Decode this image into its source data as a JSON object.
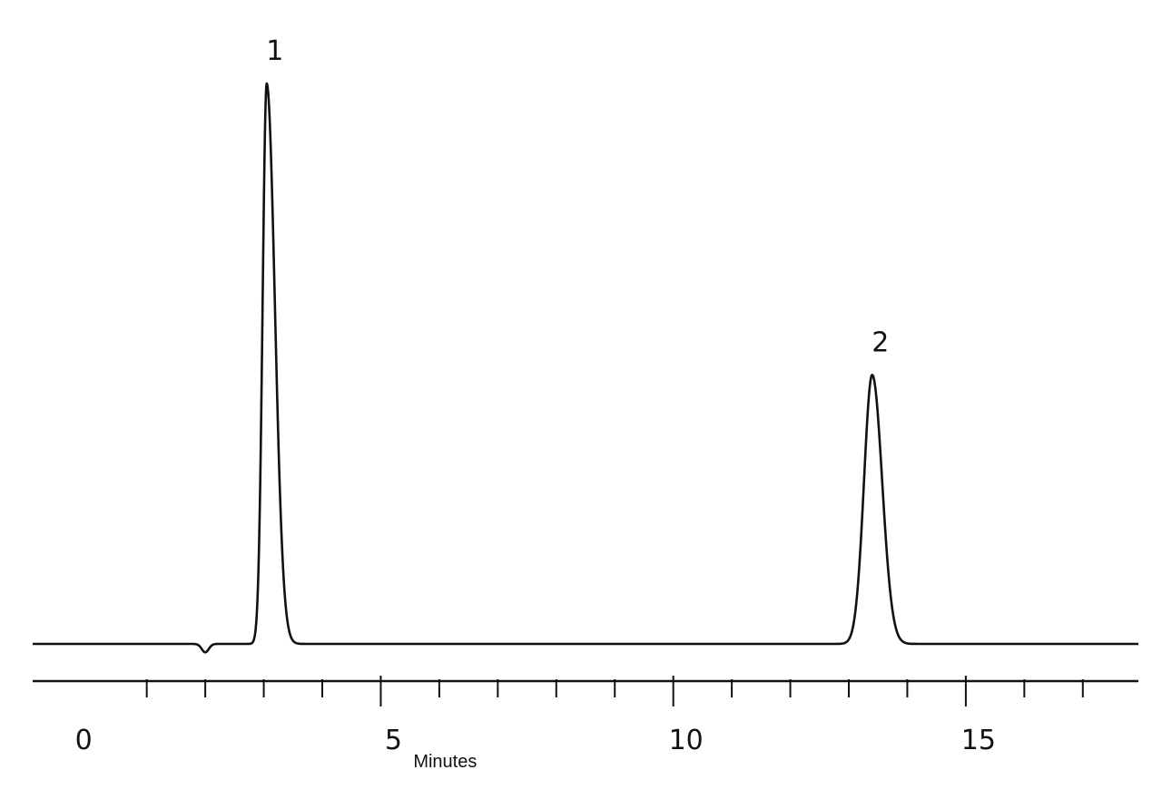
{
  "chart_data": {
    "type": "line",
    "title": "",
    "xlabel": "Minutes",
    "ylabel": "",
    "xlim": [
      -0.95,
      17.95
    ],
    "ylim": [
      0,
      100
    ],
    "grid": false,
    "x_tick_labels": [
      "0",
      "5",
      "10",
      "15"
    ],
    "x_minor_ticks": [
      1,
      2,
      3,
      4,
      6,
      7,
      8,
      9,
      11,
      12,
      13,
      14,
      16,
      17
    ],
    "baseline": 0,
    "dip": {
      "x": 2.0,
      "depth": -1.5
    },
    "peaks": [
      {
        "label": "1",
        "retention_time": 3.05,
        "height": 100
      },
      {
        "label": "2",
        "retention_time": 13.4,
        "height": 48
      }
    ],
    "line_color": "#111111"
  }
}
